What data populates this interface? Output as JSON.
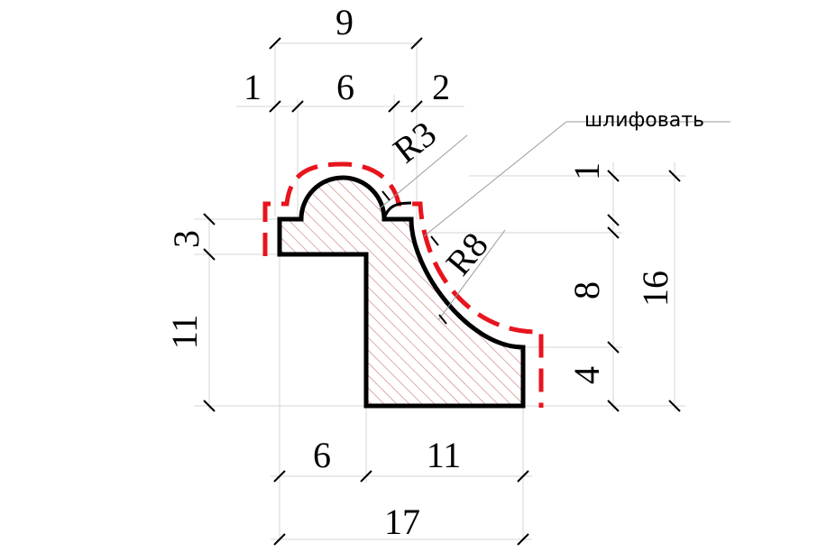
{
  "diagram": {
    "top_dims": {
      "overall_width": "9",
      "left_step": "1",
      "middle": "6",
      "right_step": "2"
    },
    "left_dims": {
      "step_height": "3",
      "lower_height": "11"
    },
    "right_dims": {
      "top_offset": "1",
      "middle_height": "8",
      "bottom_height": "4",
      "overall_height": "16"
    },
    "bottom_dims": {
      "left_part": "6",
      "right_part": "11",
      "overall_width": "17"
    },
    "radii": {
      "small": "R3",
      "large": "R8"
    },
    "note": "шлифовать",
    "colors": {
      "outline": "#000000",
      "sanding_line": "#e8141d",
      "hatch": "#7a7a7a"
    }
  }
}
